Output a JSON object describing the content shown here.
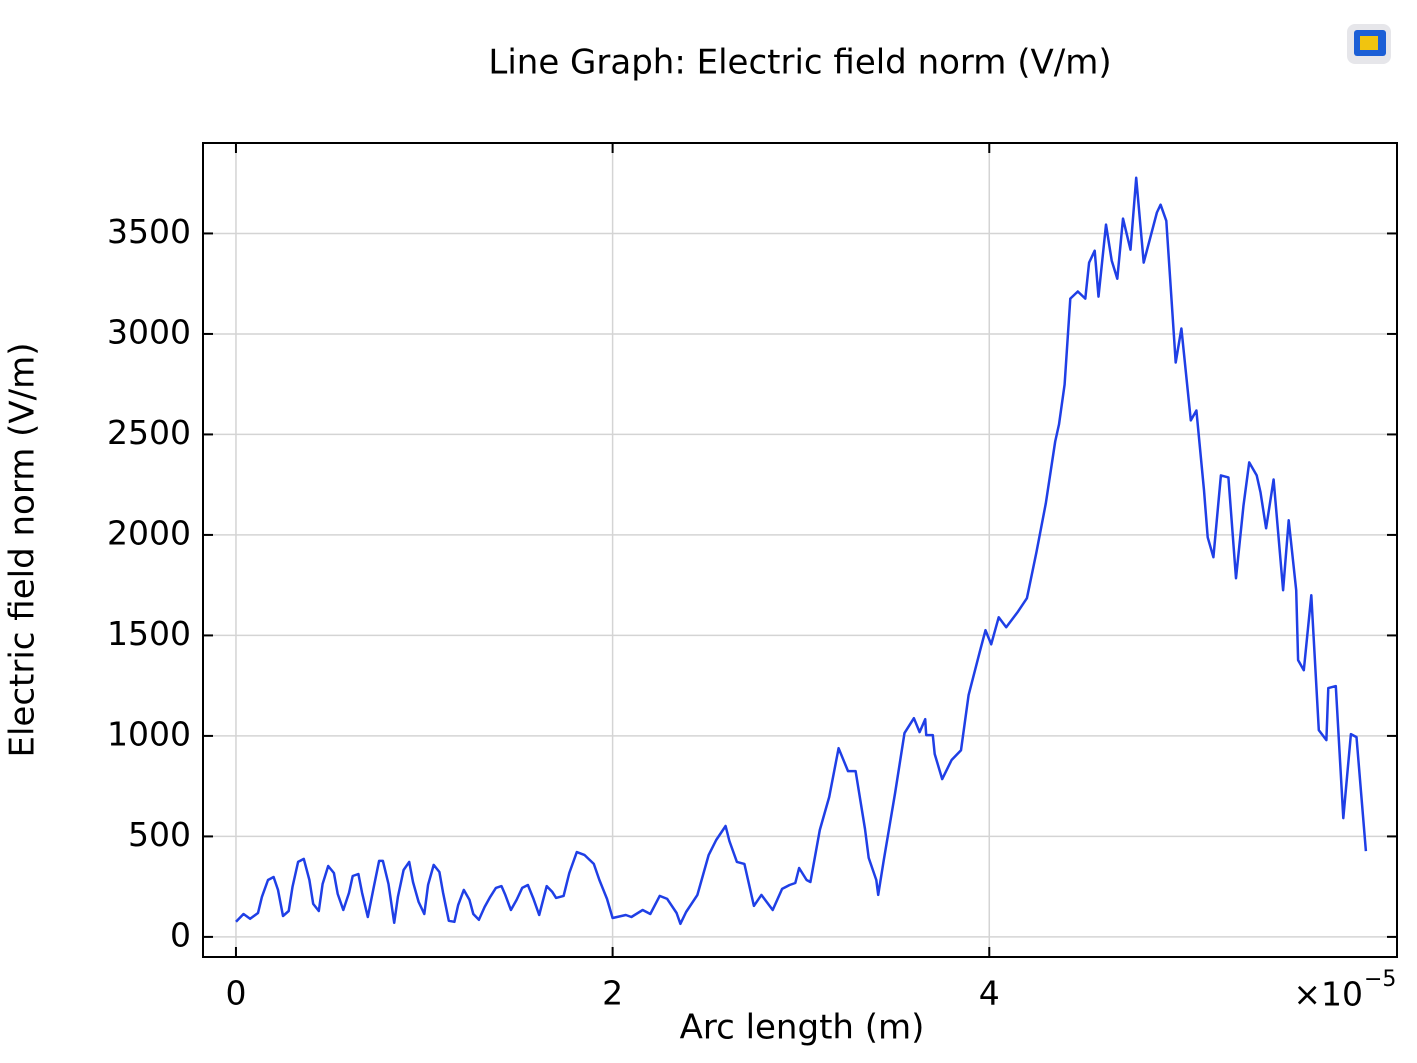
{
  "chart_data": {
    "type": "line",
    "title": "Line Graph: Electric field norm (V/m)",
    "x_label": "Arc length (m)",
    "y_label": "Electric field norm (V/m)",
    "x_multiplier": "×10",
    "x_exponent": "−5",
    "xlim": [
      -0.175,
      6.165
    ],
    "ylim": [
      -100,
      3950
    ],
    "xticks": [
      0,
      2,
      4
    ],
    "yticks": [
      0,
      500,
      1000,
      1500,
      2000,
      2500,
      3000,
      3500
    ],
    "grid": true,
    "series": [
      {
        "color": "#1f3fe6",
        "x": [
          0,
          0.04,
          0.075,
          0.117,
          0.138,
          0.17,
          0.2,
          0.223,
          0.25,
          0.28,
          0.3,
          0.33,
          0.36,
          0.39,
          0.41,
          0.44,
          0.46,
          0.49,
          0.52,
          0.54,
          0.57,
          0.6,
          0.62,
          0.65,
          0.67,
          0.7,
          0.73,
          0.76,
          0.78,
          0.81,
          0.84,
          0.86,
          0.89,
          0.92,
          0.94,
          0.97,
          1.0,
          1.02,
          1.05,
          1.08,
          1.1,
          1.13,
          1.16,
          1.18,
          1.21,
          1.24,
          1.26,
          1.29,
          1.32,
          1.35,
          1.38,
          1.41,
          1.43,
          1.46,
          1.49,
          1.52,
          1.55,
          1.58,
          1.61,
          1.65,
          1.68,
          1.7,
          1.74,
          1.77,
          1.81,
          1.85,
          1.9,
          1.93,
          1.97,
          2.0,
          2.07,
          2.1,
          2.16,
          2.2,
          2.25,
          2.29,
          2.34,
          2.36,
          2.39,
          2.45,
          2.51,
          2.55,
          2.6,
          2.62,
          2.66,
          2.7,
          2.75,
          2.79,
          2.85,
          2.9,
          2.94,
          2.97,
          2.99,
          3.03,
          3.05,
          3.1,
          3.15,
          3.2,
          3.25,
          3.29,
          3.34,
          3.36,
          3.4,
          3.41,
          3.44,
          3.5,
          3.55,
          3.6,
          3.63,
          3.66,
          3.665,
          3.7,
          3.71,
          3.75,
          3.8,
          3.85,
          3.89,
          3.95,
          3.98,
          4.01,
          4.05,
          4.09,
          4.15,
          4.2,
          4.25,
          4.3,
          4.35,
          4.37,
          4.4,
          4.43,
          4.47,
          4.51,
          4.53,
          4.56,
          4.58,
          4.62,
          4.65,
          4.68,
          4.71,
          4.75,
          4.78,
          4.82,
          4.89,
          4.91,
          4.94,
          4.99,
          5.02,
          5.07,
          5.1,
          5.14,
          5.16,
          5.19,
          5.23,
          5.27,
          5.31,
          5.35,
          5.38,
          5.42,
          5.44,
          5.47,
          5.51,
          5.56,
          5.59,
          5.63,
          5.64,
          5.67,
          5.71,
          5.75,
          5.79,
          5.8,
          5.84,
          5.88,
          5.92,
          5.95,
          6.0
        ],
        "values": [
          75,
          114,
          90,
          119,
          199,
          283,
          298,
          234,
          104,
          129,
          249,
          373,
          388,
          283,
          164,
          129,
          263,
          353,
          318,
          214,
          134,
          219,
          303,
          313,
          219,
          99,
          239,
          378,
          378,
          263,
          70,
          199,
          333,
          373,
          273,
          174,
          114,
          259,
          358,
          323,
          219,
          80,
          75,
          159,
          234,
          184,
          114,
          85,
          149,
          199,
          244,
          253,
          209,
          134,
          184,
          244,
          258,
          189,
          109,
          253,
          224,
          194,
          204,
          318,
          422,
          408,
          363,
          283,
          189,
          94,
          109,
          99,
          134,
          114,
          204,
          189,
          119,
          65,
          124,
          209,
          408,
          482,
          552,
          477,
          373,
          363,
          154,
          209,
          134,
          239,
          258,
          268,
          343,
          283,
          273,
          532,
          696,
          939,
          825,
          825,
          537,
          393,
          283,
          209,
          383,
          716,
          1014,
          1088,
          1019,
          1083,
          1004,
          1004,
          910,
          785,
          880,
          929,
          1203,
          1421,
          1526,
          1456,
          1590,
          1541,
          1615,
          1685,
          1913,
          2157,
          2465,
          2550,
          2748,
          3176,
          3211,
          3176,
          3355,
          3414,
          3186,
          3544,
          3365,
          3275,
          3574,
          3419,
          3777,
          3355,
          3604,
          3643,
          3563,
          2858,
          3027,
          2570,
          2619,
          2222,
          1988,
          1889,
          2296,
          2286,
          1784,
          2147,
          2361,
          2296,
          2212,
          2033,
          2276,
          1725,
          2073,
          1725,
          1377,
          1327,
          1700,
          1029,
          979,
          1238,
          1248,
          591,
          1009,
          994,
          427
        ]
      }
    ]
  }
}
